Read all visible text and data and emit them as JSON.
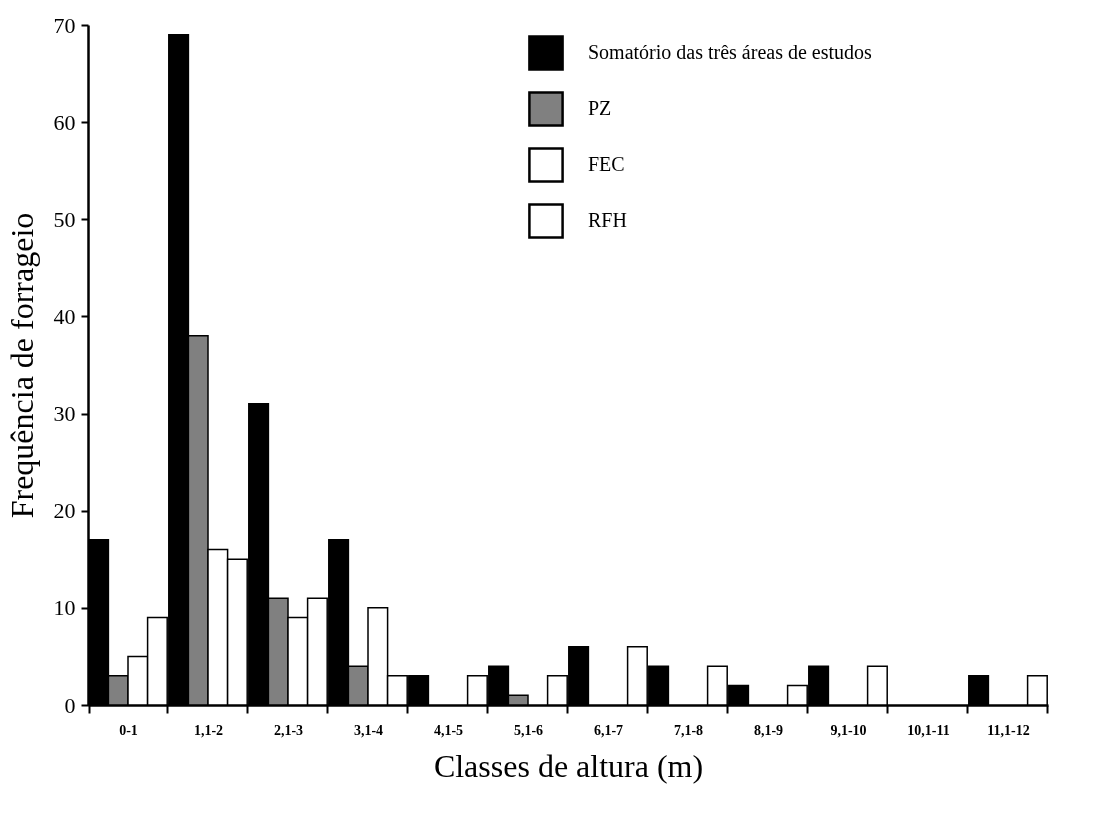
{
  "chart_data": {
    "type": "bar",
    "xlabel": "Classes de altura (m)",
    "ylabel": "Frequência de forrageio",
    "categories": [
      "0-1",
      "1,1-2",
      "2,1-3",
      "3,1-4",
      "4,1-5",
      "5,1-6",
      "6,1-7",
      "7,1-8",
      "8,1-9",
      "9,1-10",
      "10,1-11",
      "11,1-12"
    ],
    "series": [
      {
        "name": "Somatório das três áreas de estudos",
        "color": "#000000",
        "values": [
          17,
          69,
          31,
          17,
          3,
          4,
          6,
          4,
          2,
          4,
          0,
          3
        ]
      },
      {
        "name": "PZ",
        "color": "#808080",
        "values": [
          3,
          38,
          11,
          4,
          0,
          1,
          0,
          0,
          0,
          0,
          0,
          0
        ]
      },
      {
        "name": "FEC",
        "color": "#ffffff",
        "values": [
          5,
          16,
          9,
          10,
          0,
          0,
          0,
          0,
          0,
          0,
          0,
          0
        ]
      },
      {
        "name": "RFH",
        "color": "#ffffff",
        "values": [
          9,
          15,
          11,
          3,
          3,
          3,
          6,
          4,
          2,
          4,
          0,
          3
        ]
      }
    ],
    "ylim": [
      0,
      70
    ],
    "yticks": [
      0,
      10,
      20,
      30,
      40,
      50,
      60,
      70
    ],
    "grid": false,
    "legend": "top right"
  }
}
